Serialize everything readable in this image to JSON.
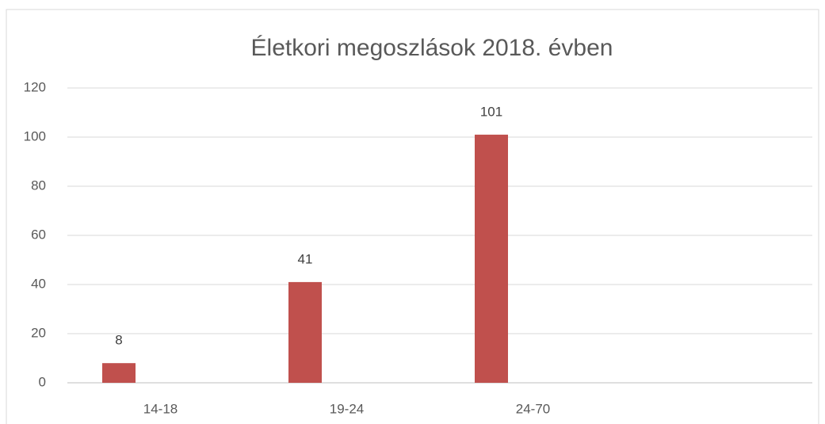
{
  "chart_data": {
    "type": "bar",
    "title": "Életkori megoszlások 2018. évben",
    "categories": [
      "14-18",
      "19-24",
      "24-70",
      null
    ],
    "values": [
      8,
      41,
      101,
      null
    ],
    "color": "#c0504d",
    "ylim": [
      0,
      120
    ],
    "yticks": [
      0,
      20,
      40,
      60,
      80,
      100,
      120
    ],
    "grid": true
  }
}
